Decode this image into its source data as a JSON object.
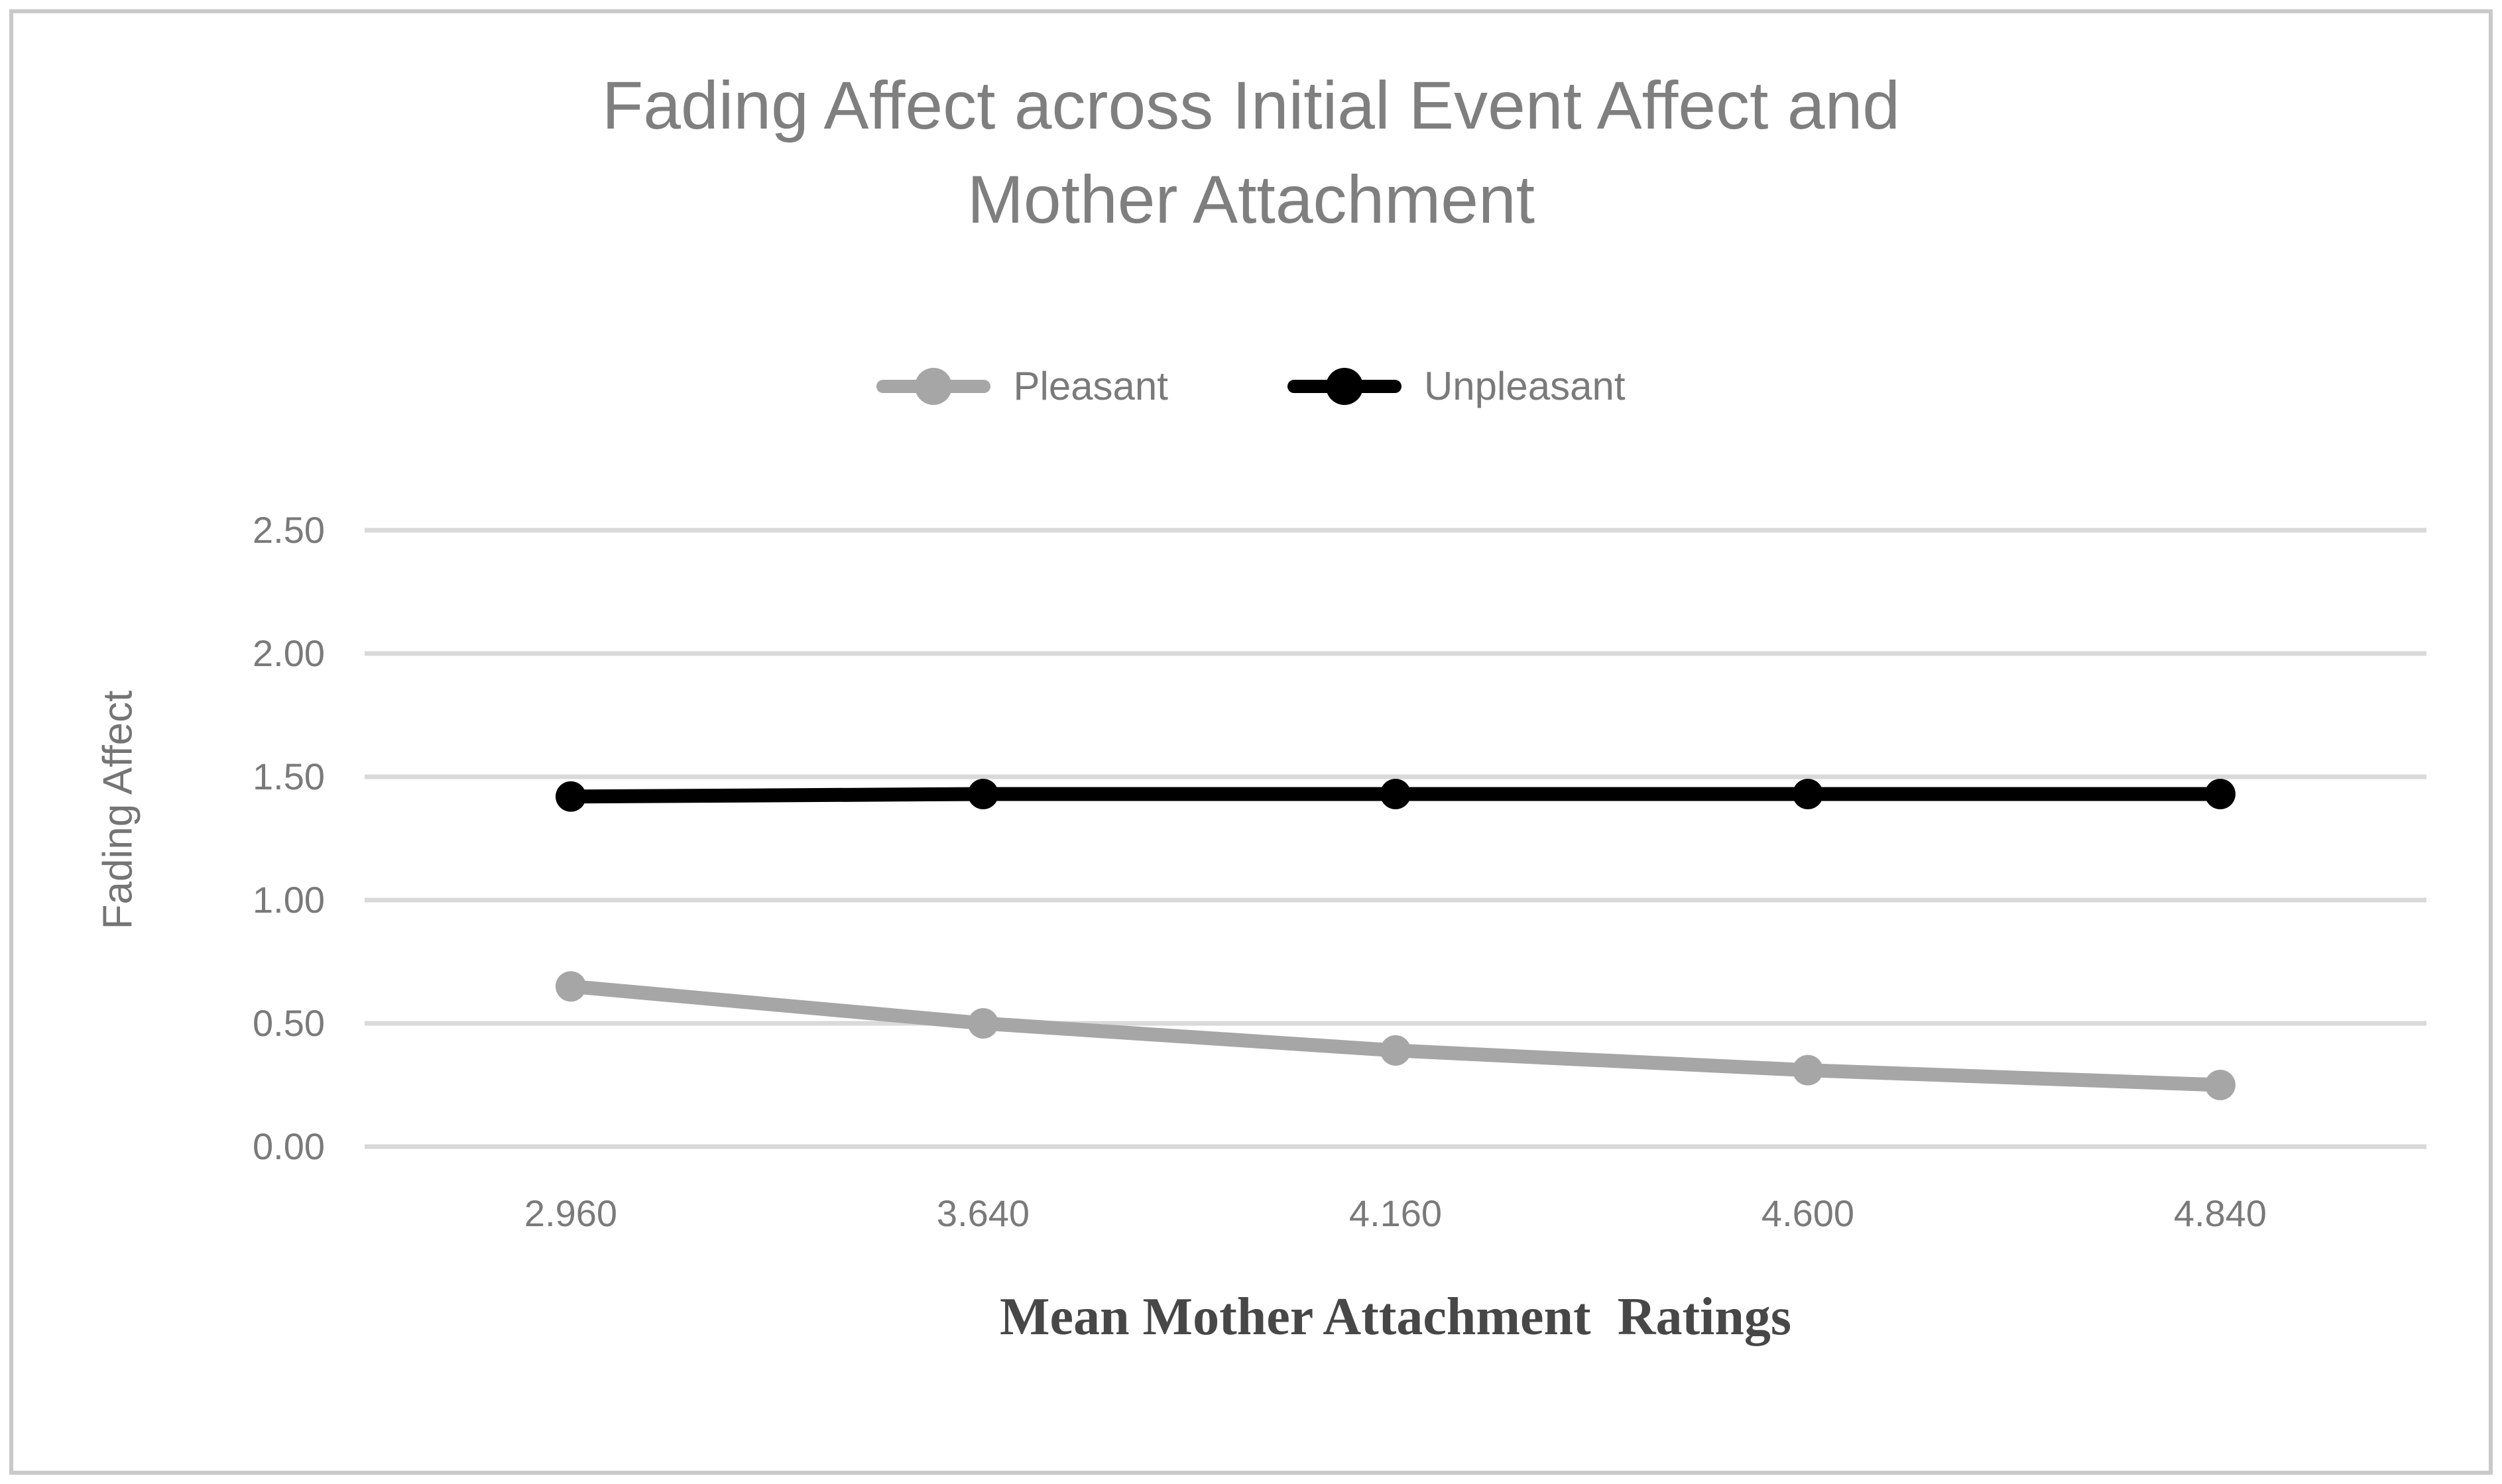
{
  "chart": {
    "title_line1": "Fading Affect across Initial Event Affect and",
    "title_line2": "Mother Attachment",
    "colors": {
      "pleasant_series": "#a6a6a6",
      "unpleasant_series": "#000000",
      "gridline": "#d9d9d9",
      "chart_border": "#c9c9c9",
      "title_text": "#7f7f7f",
      "tick_text": "#7a7a7a",
      "x_axis_title_text": "#474747",
      "y_axis_title_text": "#757575"
    }
  },
  "chart_data": {
    "type": "line",
    "title": "Fading Affect across Initial Event Affect and Mother Attachment",
    "xlabel": "Mean Mother Attachment  Ratings",
    "ylabel": "Fading Affect",
    "categories": [
      "2.960",
      "3.640",
      "4.160",
      "4.600",
      "4.840"
    ],
    "series": [
      {
        "name": "Pleasant",
        "color": "#a6a6a6",
        "values": [
          0.65,
          0.5,
          0.39,
          0.31,
          0.25
        ]
      },
      {
        "name": "Unpleasant",
        "color": "#000000",
        "values": [
          1.42,
          1.43,
          1.43,
          1.43,
          1.43
        ]
      }
    ],
    "y_ticks": [
      "2.50",
      "2.00",
      "1.50",
      "1.00",
      "0.50",
      "0.00"
    ],
    "ylim": [
      0,
      2.5
    ],
    "y_tick_step": 0.5,
    "grid": true,
    "legend_position": "top-center",
    "marker": "circle",
    "x_axis_type": "category"
  }
}
